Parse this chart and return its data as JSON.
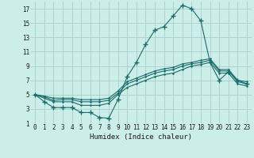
{
  "xlabel": "Humidex (Indice chaleur)",
  "bg_color": "#cceee8",
  "grid_color": "#aacccc",
  "line_color": "#1a6b6b",
  "xlim": [
    -0.5,
    23.5
  ],
  "ylim": [
    1,
    18
  ],
  "xticks": [
    0,
    1,
    2,
    3,
    4,
    5,
    6,
    7,
    8,
    9,
    10,
    11,
    12,
    13,
    14,
    15,
    16,
    17,
    18,
    19,
    20,
    21,
    22,
    23
  ],
  "yticks": [
    1,
    3,
    5,
    7,
    9,
    11,
    13,
    15,
    17
  ],
  "series": [
    {
      "x": [
        0,
        1,
        2,
        3,
        4,
        5,
        6,
        7,
        8,
        9,
        10,
        11,
        12,
        13,
        14,
        15,
        16,
        17,
        18,
        19,
        20,
        21,
        22,
        23
      ],
      "y": [
        5,
        4,
        3.2,
        3.2,
        3.2,
        2.5,
        2.5,
        1.8,
        1.7,
        4.3,
        7.5,
        9.5,
        12,
        14,
        14.5,
        16,
        17.5,
        17,
        15.3,
        9.5,
        7,
        8.2,
        7,
        6.5
      ],
      "marker": "+"
    },
    {
      "x": [
        0,
        1,
        2,
        3,
        4,
        5,
        6,
        7,
        8,
        9,
        10,
        11,
        12,
        13,
        14,
        15,
        16,
        17,
        18,
        19,
        20,
        21,
        22,
        23
      ],
      "y": [
        5,
        4.8,
        4.5,
        4.5,
        4.5,
        4.3,
        4.3,
        4.3,
        4.5,
        5.5,
        6.8,
        7.3,
        7.8,
        8.3,
        8.6,
        8.8,
        9.3,
        9.5,
        9.8,
        10,
        8.5,
        8.5,
        7,
        6.8
      ],
      "marker": "."
    },
    {
      "x": [
        0,
        1,
        2,
        3,
        4,
        5,
        6,
        7,
        8,
        9,
        10,
        11,
        12,
        13,
        14,
        15,
        16,
        17,
        18,
        19,
        20,
        21,
        22,
        23
      ],
      "y": [
        5,
        4.7,
        4.2,
        4.3,
        4.3,
        4,
        4,
        4,
        4.2,
        5.2,
        6.5,
        7,
        7.5,
        8,
        8.3,
        8.5,
        9,
        9.3,
        9.5,
        9.8,
        8.3,
        8.3,
        6.8,
        6.5
      ],
      "marker": "."
    },
    {
      "x": [
        0,
        1,
        2,
        3,
        4,
        5,
        6,
        7,
        8,
        9,
        10,
        11,
        12,
        13,
        14,
        15,
        16,
        17,
        18,
        19,
        20,
        21,
        22,
        23
      ],
      "y": [
        5,
        4.5,
        4,
        4,
        4,
        3.5,
        3.5,
        3.5,
        3.8,
        5,
        6,
        6.5,
        7,
        7.5,
        7.8,
        8,
        8.5,
        9,
        9.2,
        9.5,
        8,
        8,
        6.5,
        6.2
      ],
      "marker": "."
    }
  ]
}
